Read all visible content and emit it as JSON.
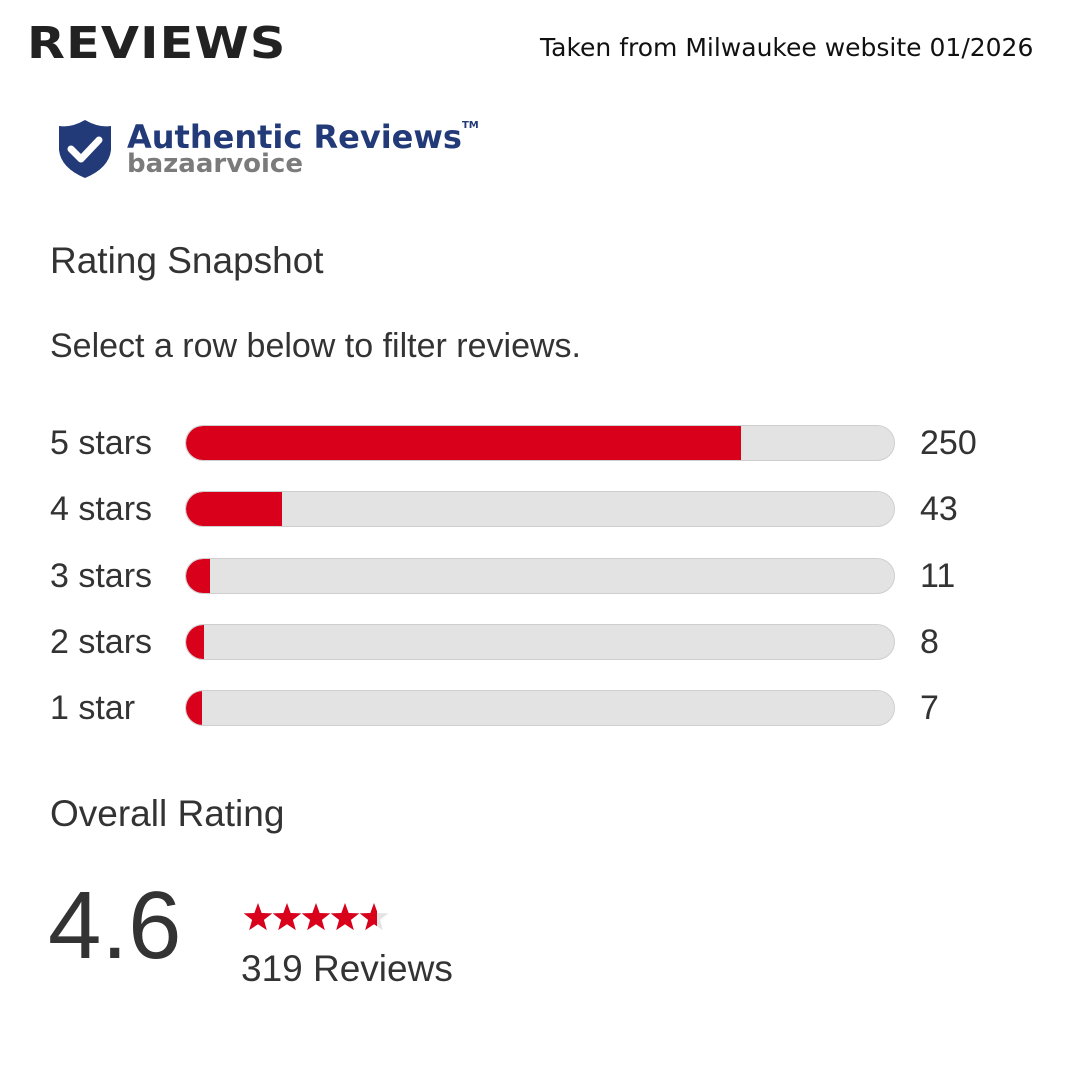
{
  "header": {
    "title": "REVIEWS",
    "source_note": "Taken from Milwaukee website 01/2026"
  },
  "logo": {
    "main": "Authentic Reviews",
    "trademark": "TM",
    "sub": "bazaarvoice",
    "icon": "shield-check-icon",
    "color": "#223a78"
  },
  "snapshot": {
    "title": "Rating Snapshot",
    "hint": "Select a row below to filter reviews.",
    "accent_color": "#d9001b",
    "rows": [
      {
        "label": "5 stars",
        "count": "250",
        "fraction": 0.784
      },
      {
        "label": "4 stars",
        "count": "43",
        "fraction": 0.135
      },
      {
        "label": "3 stars",
        "count": "11",
        "fraction": 0.034
      },
      {
        "label": "2 stars",
        "count": "8",
        "fraction": 0.025
      },
      {
        "label": "1 star",
        "count": "7",
        "fraction": 0.022
      }
    ]
  },
  "overall": {
    "title": "Overall Rating",
    "average": "4.6",
    "stars_value": 4.6,
    "stars_max": 5,
    "reviews_text": "319 Reviews"
  }
}
